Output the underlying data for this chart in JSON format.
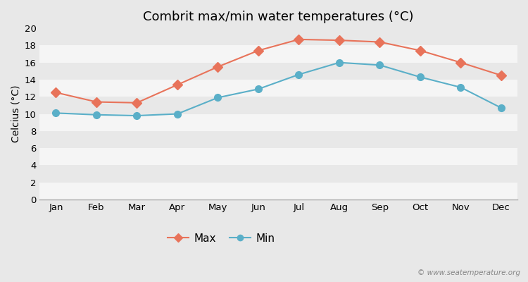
{
  "title": "Combrit max/min water temperatures (°C)",
  "months": [
    "Jan",
    "Feb",
    "Mar",
    "Apr",
    "May",
    "Jun",
    "Jul",
    "Aug",
    "Sep",
    "Oct",
    "Nov",
    "Dec"
  ],
  "max_temps": [
    12.5,
    11.4,
    11.3,
    13.4,
    15.5,
    17.4,
    18.7,
    18.6,
    18.4,
    17.4,
    16.0,
    14.5
  ],
  "min_temps": [
    10.1,
    9.9,
    9.8,
    10.0,
    11.9,
    12.9,
    14.6,
    16.0,
    15.7,
    14.3,
    13.1,
    10.7
  ],
  "max_color": "#e8735a",
  "min_color": "#5aafc8",
  "figure_bg_color": "#e8e8e8",
  "plot_bg_color": "#ffffff",
  "band_color_light": "#f0f0f0",
  "band_color_dark": "#e0e0e0",
  "ylabel": "Celcius (°C)",
  "ylim": [
    0,
    20
  ],
  "yticks": [
    0,
    2,
    4,
    6,
    8,
    10,
    12,
    14,
    16,
    18,
    20
  ],
  "legend_labels": [
    "Max",
    "Min"
  ],
  "watermark": "© www.seatemperature.org",
  "title_fontsize": 13,
  "label_fontsize": 10,
  "tick_fontsize": 9.5,
  "max_marker": "D",
  "min_marker": "o",
  "max_markersize": 7,
  "min_markersize": 7,
  "linewidth": 1.5
}
